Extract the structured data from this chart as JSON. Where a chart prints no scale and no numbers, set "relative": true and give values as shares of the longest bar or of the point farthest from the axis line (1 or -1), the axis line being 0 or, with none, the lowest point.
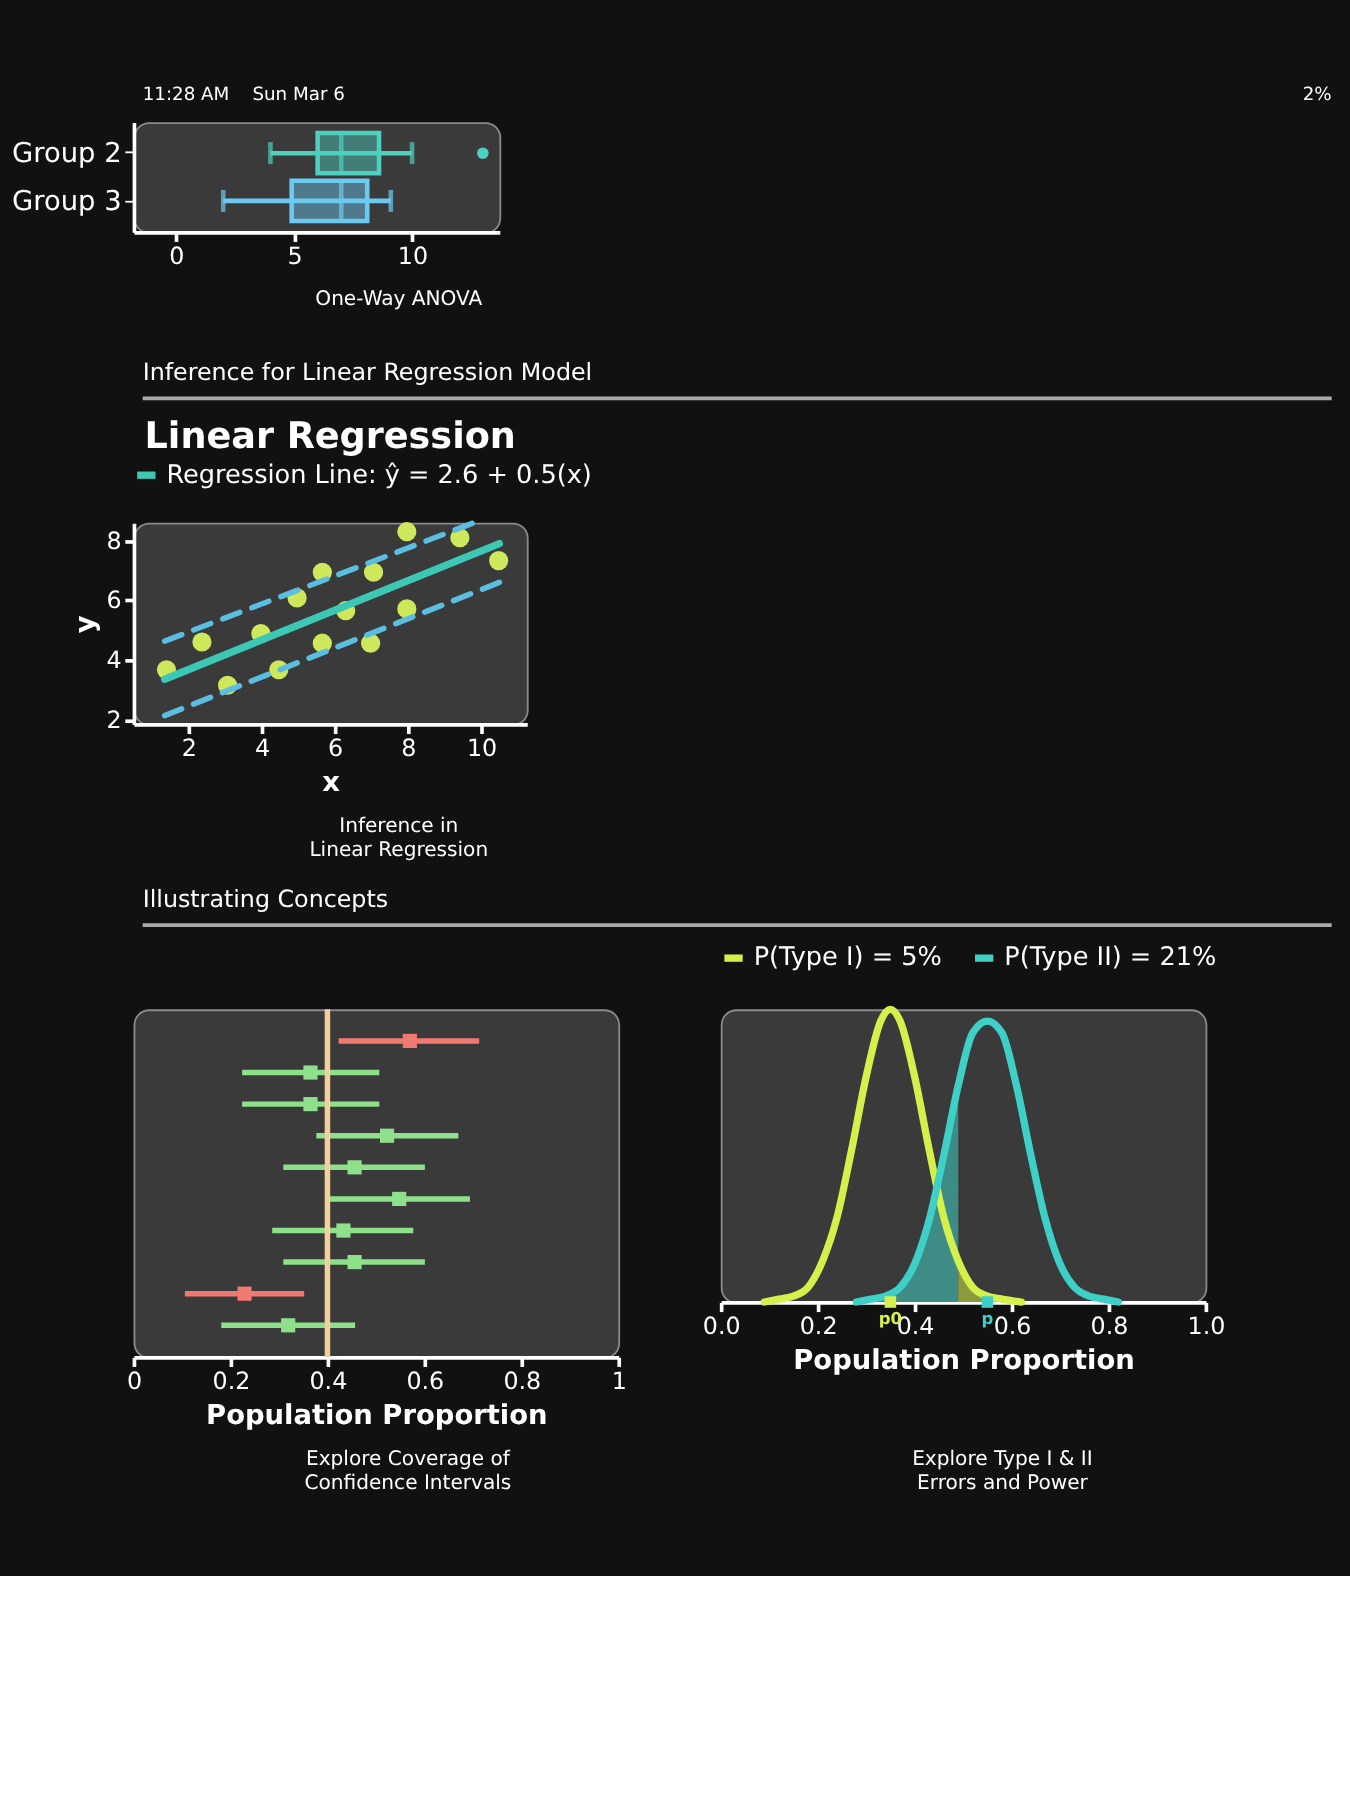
{
  "chart_data": [
    {
      "type": "box",
      "orientation": "horizontal",
      "categories": [
        "Group 2",
        "Group 3"
      ],
      "colors": [
        "#4dd0c0",
        "#6ccaf0"
      ],
      "boxes": [
        {
          "low": 4,
          "q1": 6,
          "median": 7,
          "q3": 8.6,
          "high": 10,
          "outliers": [
            13
          ]
        },
        {
          "low": 2,
          "q1": 4.9,
          "median": 7,
          "q3": 8.1,
          "high": 9.1
        }
      ],
      "xlim": [
        -1.8,
        13.7
      ],
      "xticks": [
        0,
        5,
        10
      ],
      "annotations": [
        "11:28 AM",
        "Sun Mar 6",
        "2%",
        "One-Way ANOVA"
      ]
    },
    {
      "type": "scatter",
      "title": "Linear Regression",
      "xlabel": "x",
      "ylabel": "y",
      "legend": "top",
      "xlim": [
        0.5,
        11.25
      ],
      "ylim": [
        1.85,
        8.6
      ],
      "xticks": [
        2,
        4,
        6,
        8,
        10
      ],
      "yticks": [
        2,
        4,
        6,
        8
      ],
      "series": [
        {
          "type": "scatter",
          "marker": "circle",
          "color": "#cde85a",
          "x": [
            1.4,
            2.37,
            3.07,
            3.98,
            4.47,
            4.97,
            5.66,
            5.66,
            6.3,
            7.06,
            6.98,
            7.97,
            7.97,
            9.42,
            10.48
          ],
          "values": [
            3.67,
            4.6,
            3.15,
            4.88,
            3.67,
            6.08,
            6.94,
            4.56,
            5.65,
            6.94,
            4.56,
            8.3,
            5.71,
            8.1,
            7.33
          ]
        },
        {
          "type": "line",
          "line_style": "dashed",
          "color": "#5bbde0",
          "x": [
            1.35,
            9.8
          ],
          "values": [
            4.63,
            8.6
          ]
        },
        {
          "type": "line",
          "line_style": "dashed",
          "color": "#5bbde0",
          "x": [
            1.35,
            10.5
          ],
          "values": [
            2.13,
            6.6
          ]
        },
        {
          "type": "line",
          "name": "Regression Line: ŷ = 2.6 + 0.5(x)",
          "color": "#3cc8b4",
          "x": [
            1.35,
            10.5
          ],
          "values": [
            3.35,
            7.9
          ]
        }
      ],
      "annotations": [
        "Inference for Linear Regression Model",
        "Inference in Linear Regression"
      ]
    },
    {
      "type": "scatter",
      "orientation": "horizontal",
      "marker": "square",
      "tick_labels": "x",
      "xlabel": "Population Proportion",
      "xlim": [
        0,
        1
      ],
      "xticks": [
        0,
        0.2,
        0.4,
        0.6,
        0.8,
        1
      ],
      "categories": [
        null,
        null,
        null,
        null,
        null,
        null,
        null,
        null,
        null,
        null
      ],
      "values": [
        0.57,
        0.365,
        0.365,
        0.523,
        0.456,
        0.548,
        0.433,
        0.456,
        0.229,
        0.319
      ],
      "errors": [
        [
          0.423,
          0.713
        ],
        [
          0.224,
          0.507
        ],
        [
          0.224,
          0.507
        ],
        [
          0.377,
          0.67
        ],
        [
          0.309,
          0.601
        ],
        [
          0.405,
          0.694
        ],
        [
          0.286,
          0.577
        ],
        [
          0.309,
          0.601
        ],
        [
          0.106,
          0.352
        ],
        [
          0.181,
          0.457
        ]
      ],
      "colors": [
        "#f07a72",
        "#8fe08a",
        "#8fe08a",
        "#8fe08a",
        "#8fe08a",
        "#8fe08a",
        "#8fe08a",
        "#8fe08a",
        "#f07a72",
        "#8fe08a"
      ],
      "ref_lines": [
        {
          "axis": "x",
          "value": 0.4,
          "color": "#f5cf9a"
        }
      ],
      "annotations": [
        "Illustrating Concepts",
        "Explore Coverage of Confidence Intervals"
      ]
    },
    {
      "type": "line",
      "relative": true,
      "legend": "top",
      "xlabel": "Population Proportion",
      "xlim": [
        0,
        1
      ],
      "xticks": [
        {
          "value": 0,
          "label": "0.0"
        },
        0.2,
        0.4,
        0.6,
        0.8,
        {
          "value": 1,
          "label": "1.0"
        }
      ],
      "series": [
        {
          "type": "area",
          "color": "#3d8c86",
          "x": [
            0.28,
            0.31,
            0.34,
            0.37,
            0.4,
            0.43,
            0.46,
            0.49
          ],
          "values": [
            0,
            0.01,
            0.02,
            0.05,
            0.13,
            0.28,
            0.5,
            0.74
          ]
        },
        {
          "type": "area",
          "color": "#8c9a3c",
          "x": [
            0.49,
            0.52,
            0.55,
            0.58,
            0.62
          ],
          "values": [
            0.14,
            0.05,
            0.02,
            0.01,
            0
          ]
        },
        {
          "type": "line",
          "name": "P(Type I) = 5%",
          "color": "#d4f04a",
          "x": [
            0.09,
            0.12,
            0.15,
            0.18,
            0.21,
            0.24,
            0.27,
            0.3,
            0.33,
            0.35,
            0.37,
            0.4,
            0.43,
            0.46,
            0.49,
            0.52,
            0.55,
            0.58,
            0.62
          ],
          "values": [
            0,
            0.01,
            0.02,
            0.05,
            0.14,
            0.29,
            0.52,
            0.77,
            0.96,
            1,
            0.96,
            0.77,
            0.52,
            0.29,
            0.14,
            0.05,
            0.02,
            0.01,
            0
          ]
        },
        {
          "type": "line",
          "name": "P(Type II) = 21%",
          "color": "#3ecfc6",
          "x": [
            0.28,
            0.31,
            0.34,
            0.37,
            0.4,
            0.43,
            0.46,
            0.49,
            0.52,
            0.55,
            0.58,
            0.61,
            0.64,
            0.67,
            0.7,
            0.73,
            0.76,
            0.79,
            0.82
          ],
          "values": [
            0,
            0.01,
            0.02,
            0.05,
            0.13,
            0.28,
            0.5,
            0.74,
            0.92,
            0.96,
            0.92,
            0.74,
            0.5,
            0.28,
            0.13,
            0.05,
            0.02,
            0.01,
            0
          ]
        }
      ],
      "annotations": [
        "Explore Type I & II Errors and Power",
        {
          "text": "p0",
          "x": 0.35,
          "y": 0
        },
        {
          "text": "p",
          "x": 0.55,
          "y": 0
        }
      ]
    }
  ]
}
